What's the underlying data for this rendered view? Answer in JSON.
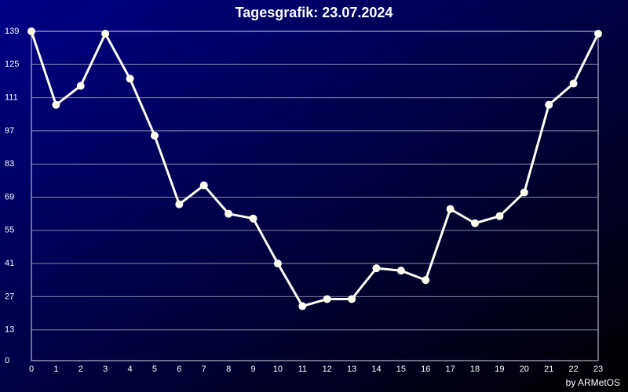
{
  "chart_data": {
    "type": "line",
    "title": "Tagesgrafik: 23.07.2024",
    "credit": "by ARMetOS",
    "x": [
      0,
      1,
      2,
      3,
      4,
      5,
      6,
      7,
      8,
      9,
      10,
      11,
      12,
      13,
      14,
      15,
      16,
      17,
      18,
      19,
      20,
      21,
      22,
      23
    ],
    "xlim": [
      0,
      23
    ],
    "xticks": [
      0,
      1,
      2,
      3,
      4,
      5,
      6,
      7,
      8,
      9,
      10,
      11,
      12,
      13,
      14,
      15,
      16,
      17,
      18,
      19,
      20,
      21,
      22,
      23
    ],
    "ylim": [
      0,
      139
    ],
    "yticks": [
      0,
      13,
      27,
      41,
      55,
      69,
      83,
      97,
      111,
      125,
      139
    ],
    "grid": true,
    "series": [
      {
        "color": "#fffff0",
        "values": [
          139,
          108,
          116,
          138,
          119,
          95,
          66,
          74,
          62,
          60,
          41,
          23,
          26,
          26,
          39,
          38,
          34,
          64,
          58,
          61,
          71,
          108,
          117,
          138
        ]
      }
    ]
  }
}
